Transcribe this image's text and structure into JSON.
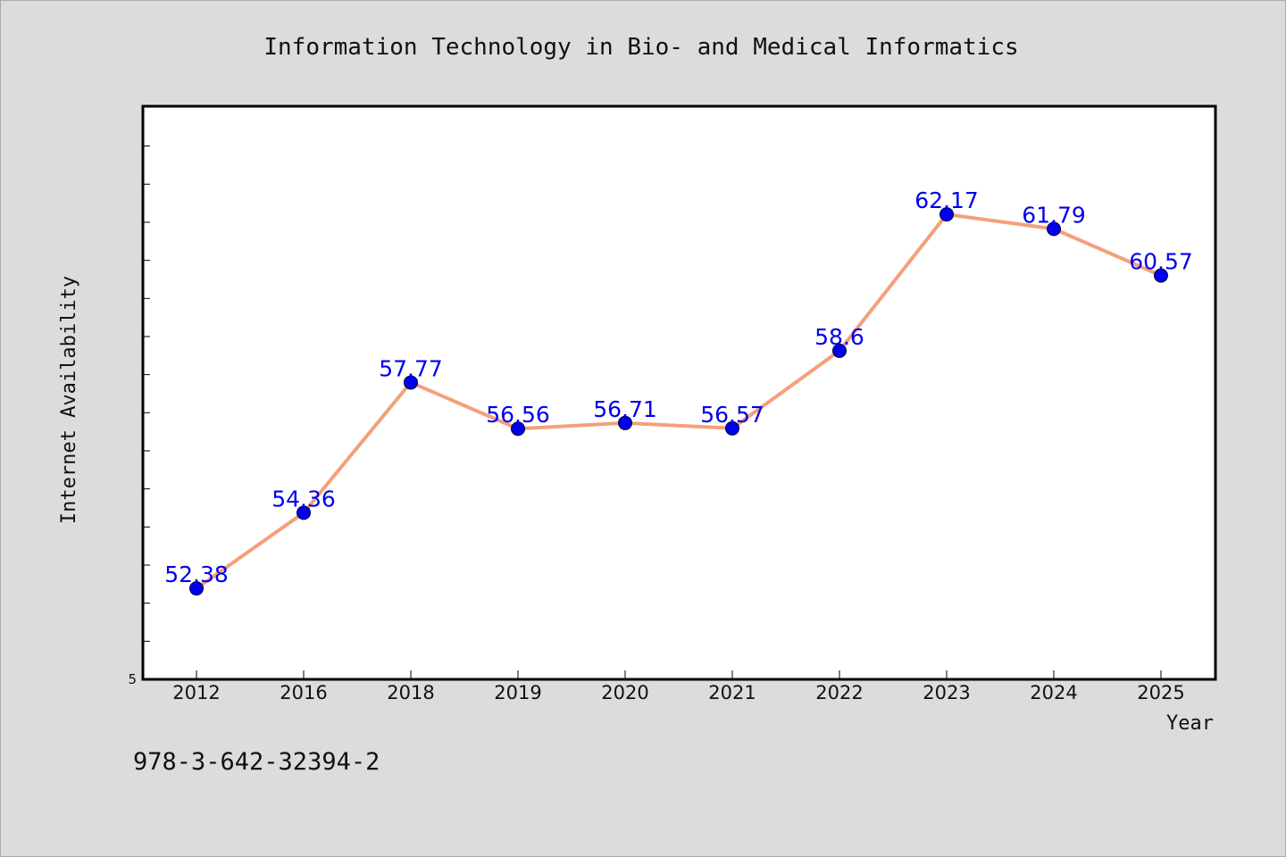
{
  "chart_data": {
    "type": "line",
    "title": "Information Technology in Bio- and Medical Informatics",
    "xlabel": "Year",
    "ylabel": "Internet Availability",
    "categories": [
      "2012",
      "2016",
      "2018",
      "2019",
      "2020",
      "2021",
      "2022",
      "2023",
      "2024",
      "2025"
    ],
    "series": [
      {
        "values": [
          52.38,
          54.36,
          57.77,
          56.56,
          56.71,
          56.57,
          58.6,
          62.17,
          61.79,
          60.57
        ],
        "labels": [
          "52.38",
          "54.36",
          "57.77",
          "56.56",
          "56.71",
          "56.57",
          "58.6",
          "62.17",
          "61.79",
          "60.57"
        ]
      }
    ],
    "ylim": [
      50,
      65
    ],
    "y_tick_label": "5",
    "grid": false,
    "colors": {
      "line": "#f4a07a",
      "marker": "#0000ee",
      "data_label": "#0000ee",
      "plot_background": "#ffffff",
      "page_background": "#dcdcdc"
    }
  },
  "footer_text": "978-3-642-32394-2"
}
